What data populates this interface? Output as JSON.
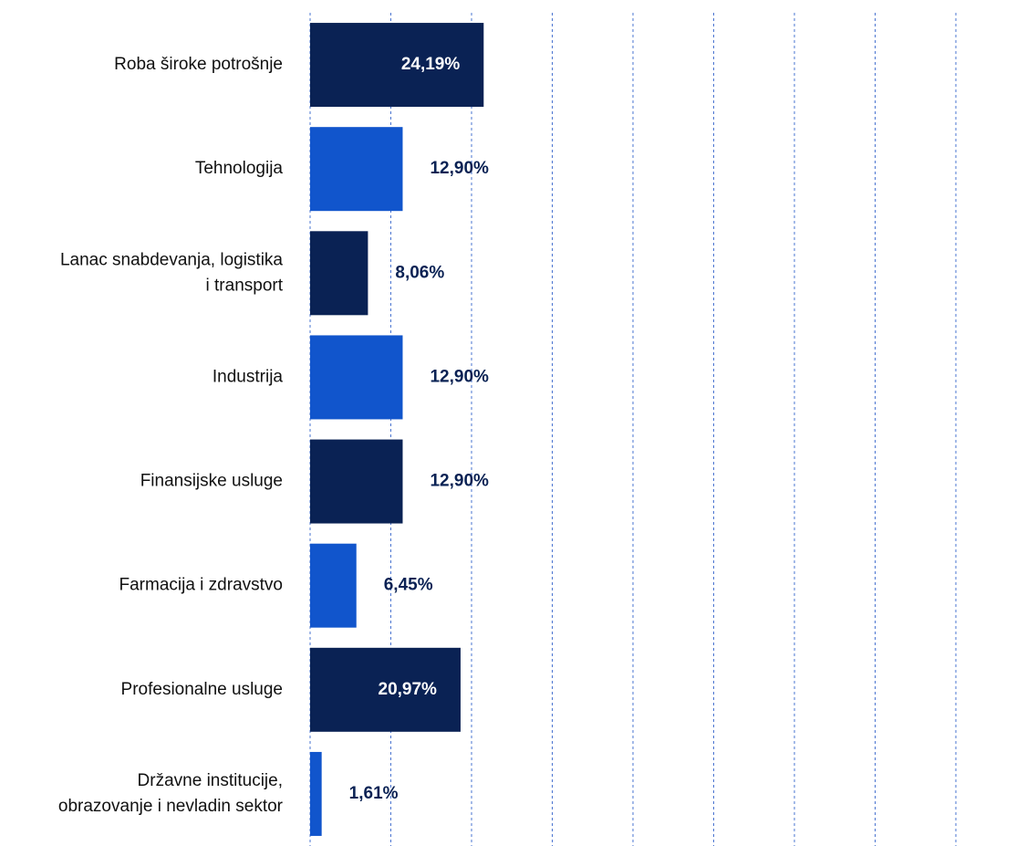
{
  "chart_data": {
    "type": "barh",
    "categories": [
      "Roba široke potrošnje",
      "Tehnologija",
      "Lanac snabdevanja, logistika\ni transport",
      "Industrija",
      "Finansijske usluge",
      "Farmacija i zdravstvo",
      "Profesionalne usluge",
      "Državne institucije,\nobrazovanje i nevladin sektor"
    ],
    "values": [
      24.19,
      12.9,
      8.06,
      12.9,
      12.9,
      6.45,
      20.97,
      1.61
    ],
    "value_labels": [
      "24,19%",
      "12,90%",
      "8,06%",
      "12,90%",
      "12,90%",
      "6,45%",
      "20,97%",
      "1,61%"
    ],
    "colors": [
      "#0a2254",
      "#1155cc",
      "#0a2254",
      "#1155cc",
      "#0a2254",
      "#1155cc",
      "#0a2254",
      "#1155cc"
    ],
    "xlim": [
      0,
      90
    ],
    "xticks": [
      0,
      11.25,
      22.5,
      33.75,
      45,
      56.25,
      67.5,
      78.75,
      90
    ],
    "grid": true
  }
}
